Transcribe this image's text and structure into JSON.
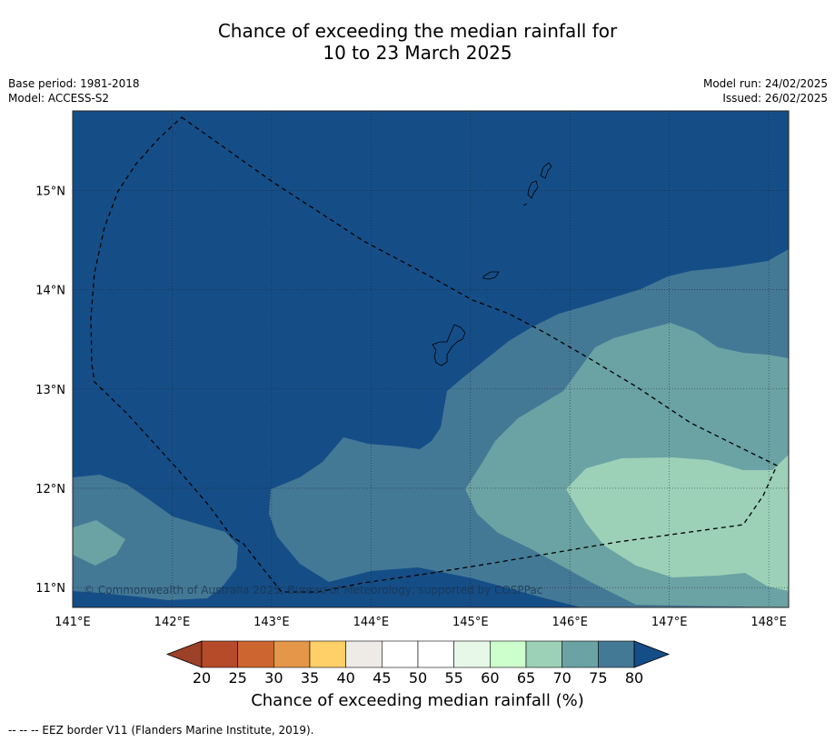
{
  "title_line1": "Chance of exceeding the median rainfall for",
  "title_line2": "10 to 23 March 2025",
  "meta_left": [
    "Base period: 1981-2018",
    "Model: ACCESS-S2"
  ],
  "meta_right": [
    "Model run: 24/02/2025",
    "Issued: 26/02/2025"
  ],
  "map": {
    "lon_range": [
      141.0,
      148.2
    ],
    "lat_range": [
      10.8,
      15.8
    ],
    "lon_ticks": [
      "141°E",
      "142°E",
      "143°E",
      "144°E",
      "145°E",
      "146°E",
      "147°E",
      "148°E"
    ],
    "lat_ticks": [
      "11°N",
      "12°N",
      "13°N",
      "14°N",
      "15°N"
    ],
    "copyright": "© Commonwealth of Australia 2025, Bureau of Meteorology, supported by COSPPac",
    "colors": {
      "band_80_plus": "#154e87",
      "band_75_80": "#447996",
      "band_70_75": "#6ba2a3",
      "band_65_70": "#9cd1b8"
    }
  },
  "colorbar": {
    "ticks": [
      "20",
      "25",
      "30",
      "35",
      "40",
      "45",
      "50",
      "55",
      "60",
      "65",
      "70",
      "75",
      "80"
    ],
    "colors": [
      "#9c4027",
      "#b54b28",
      "#cd6530",
      "#e49649",
      "#ffcf68",
      "#eeeae6",
      "#ffffff",
      "#ffffff",
      "#e8f8e8",
      "#ccffcc",
      "#9cd1b8",
      "#6ba2a3",
      "#447996",
      "#154e87"
    ],
    "label": "Chance of exceeding median rainfall (%)"
  },
  "footer": "--  --  -- EEZ border V11 (Flanders Marine Institute, 2019)."
}
